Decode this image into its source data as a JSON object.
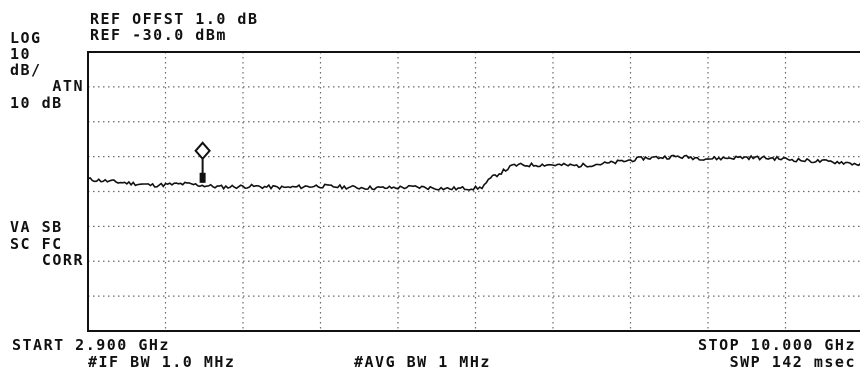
{
  "header": {
    "corner": "",
    "ref_offset": "REF OFFST 1.0 dB",
    "ref_level": "REF -30.0 dBm"
  },
  "left_panel": {
    "scale_mode": "LOG",
    "scale_value": "10",
    "scale_unit": "dB/",
    "atten_label": "ATN",
    "atten_value": "10 dB",
    "va_sb": "VA SB",
    "sc_fc": "SC FC",
    "corr": "CORR"
  },
  "footer": {
    "start": "START 2.900 GHz",
    "stop": "STOP 10.000 GHz",
    "if_bw": "#IF BW 1.0 MHz",
    "avg_bw": "#AVG BW 1 MHz",
    "sweep": "SWP 142 msec"
  },
  "colors": {
    "trace": "#111111",
    "grid": "#6a6a6a",
    "background": "#ffffff"
  },
  "chart_data": {
    "type": "line",
    "title": "",
    "xlabel": "",
    "ylabel": "",
    "x_unit": "GHz",
    "y_unit": "dBm",
    "xlim": [
      2.9,
      10.0
    ],
    "ylim": [
      -110,
      -30
    ],
    "grid": true,
    "divisions": {
      "x": 10,
      "y": 8
    },
    "legend": "none",
    "series": [
      {
        "x": [
          2.9,
          3.2,
          3.5,
          3.8,
          4.1,
          4.4,
          4.7,
          5.0,
          5.3,
          5.6,
          5.9,
          6.2,
          6.5,
          6.6,
          6.8,
          7.1,
          7.4,
          7.7,
          8.0,
          8.3,
          8.6,
          8.9,
          9.2,
          9.5,
          9.8,
          10.0
        ],
        "y": [
          -66.5,
          -67.4,
          -68.2,
          -67.8,
          -68.7,
          -68.5,
          -68.9,
          -68.4,
          -68.8,
          -69.0,
          -68.7,
          -69.2,
          -69.0,
          -66.0,
          -62.5,
          -62.3,
          -62.6,
          -61.8,
          -60.4,
          -60.0,
          -60.6,
          -60.2,
          -60.5,
          -61.2,
          -61.6,
          -62.3
        ]
      }
    ],
    "marker": {
      "x": 3.95,
      "y": -67.5
    }
  }
}
